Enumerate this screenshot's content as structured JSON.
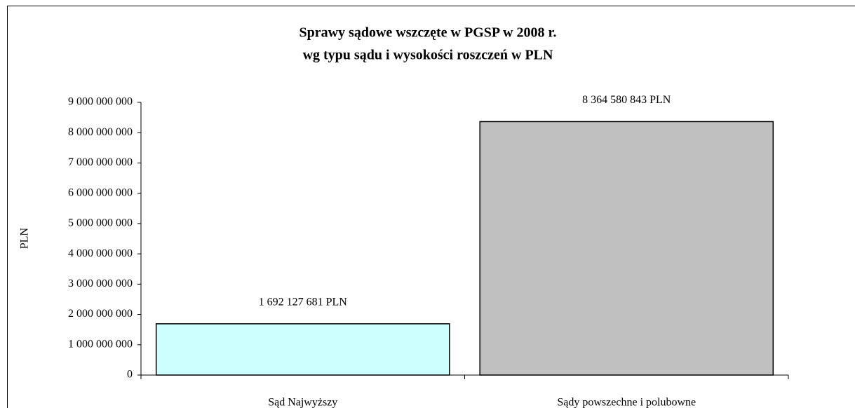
{
  "chart_data": {
    "type": "bar",
    "title": "Sprawy sądowe wszczęte w PGSP w 2008 r.",
    "subtitle": "wg typu sądu i wysokości roszczeń w PLN",
    "ylabel": "PLN",
    "categories": [
      "Sąd Najwyższy",
      "Sądy powszechne i polubowne"
    ],
    "values": [
      1692127681,
      8364580843
    ],
    "value_labels": [
      "1 692 127 681 PLN",
      "8 364 580 843 PLN"
    ],
    "colors": [
      "#ccffff",
      "#c0c0c0"
    ],
    "ylim": [
      0,
      9000000000
    ],
    "yticks": [
      0,
      {
        "value": 1000000000,
        "label": "1 000 000 000"
      },
      {
        "value": 2000000000,
        "label": "2 000 000 000"
      },
      {
        "value": 3000000000,
        "label": "3 000 000 000"
      },
      {
        "value": 4000000000,
        "label": "4 000 000 000"
      },
      {
        "value": 5000000000,
        "label": "5 000 000 000"
      },
      {
        "value": 6000000000,
        "label": "6 000 000 000"
      },
      {
        "value": 7000000000,
        "label": "7 000 000 000"
      },
      {
        "value": 8000000000,
        "label": "8 000 000 000"
      },
      {
        "value": 9000000000,
        "label": "9 000 000 000"
      }
    ],
    "grid": false
  }
}
